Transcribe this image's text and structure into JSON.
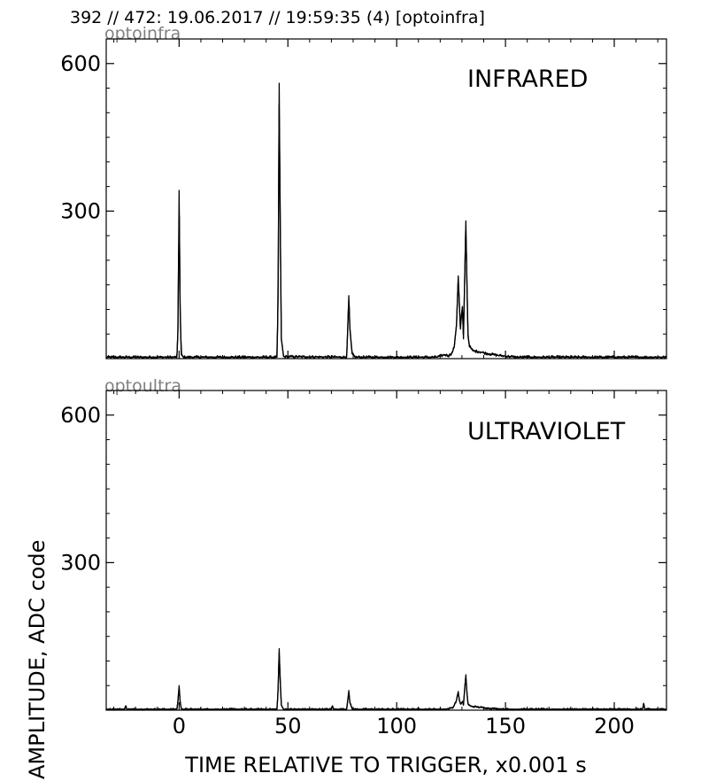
{
  "header": "392 // 472:   19.06.2017 // 19:59:35 (4)  [optoinfra]",
  "chart_data": {
    "type": "line",
    "xlabel": "TIME RELATIVE TO TRIGGER,   x0.001 s",
    "ylabel": "AMPLITUDE,  ADC code",
    "xlim": [
      -33.5,
      224
    ],
    "ylim": [
      0,
      650
    ],
    "x_ticks": [
      0,
      50,
      100,
      150,
      200
    ],
    "y_ticks": [
      300,
      600
    ],
    "line_color": "#000000",
    "grid": false,
    "panels": [
      {
        "tag": "optoinfra",
        "label": "INFRARED",
        "baseline": 3,
        "noise": 3,
        "points": [
          [
            -33.5,
            3
          ],
          [
            -1,
            3
          ],
          [
            -0.5,
            60
          ],
          [
            0,
            342
          ],
          [
            0.5,
            90
          ],
          [
            1,
            8
          ],
          [
            2,
            3
          ],
          [
            45,
            3
          ],
          [
            45.5,
            120
          ],
          [
            46,
            560
          ],
          [
            46.5,
            260
          ],
          [
            47,
            40
          ],
          [
            48,
            4
          ],
          [
            77,
            3
          ],
          [
            77.5,
            60
          ],
          [
            78,
            128
          ],
          [
            78.5,
            60
          ],
          [
            79.5,
            10
          ],
          [
            81,
            3
          ],
          [
            118,
            3
          ],
          [
            120,
            5
          ],
          [
            122,
            8
          ],
          [
            124,
            6
          ],
          [
            125.5,
            12
          ],
          [
            126.5,
            25
          ],
          [
            127.5,
            70
          ],
          [
            128.3,
            168
          ],
          [
            128.8,
            110
          ],
          [
            129.3,
            60
          ],
          [
            129.8,
            90
          ],
          [
            130.2,
            106
          ],
          [
            130.7,
            40
          ],
          [
            131.2,
            150
          ],
          [
            131.8,
            280
          ],
          [
            132.3,
            150
          ],
          [
            132.8,
            45
          ],
          [
            133.5,
            25
          ],
          [
            135,
            16
          ],
          [
            138,
            14
          ],
          [
            142,
            10
          ],
          [
            146,
            7
          ],
          [
            150,
            5
          ],
          [
            155,
            3
          ],
          [
            224,
            3
          ]
        ]
      },
      {
        "tag": "optoultra",
        "label": "ULTRAVIOLET",
        "baseline": 2,
        "noise": 2,
        "points": [
          [
            -33.5,
            2
          ],
          [
            -25,
            2
          ],
          [
            -24.5,
            9
          ],
          [
            -24,
            2
          ],
          [
            -1,
            2
          ],
          [
            -0.5,
            20
          ],
          [
            0,
            50
          ],
          [
            0.5,
            15
          ],
          [
            1,
            3
          ],
          [
            2,
            2
          ],
          [
            45,
            2
          ],
          [
            45.5,
            40
          ],
          [
            46,
            125
          ],
          [
            46.5,
            55
          ],
          [
            47,
            10
          ],
          [
            48,
            2
          ],
          [
            70,
            2
          ],
          [
            70.5,
            9
          ],
          [
            71,
            2
          ],
          [
            77,
            2
          ],
          [
            77.5,
            20
          ],
          [
            78,
            40
          ],
          [
            78.5,
            15
          ],
          [
            79.5,
            3
          ],
          [
            81,
            2
          ],
          [
            122,
            2
          ],
          [
            124,
            3
          ],
          [
            126,
            6
          ],
          [
            127.5,
            20
          ],
          [
            128.3,
            38
          ],
          [
            128.8,
            20
          ],
          [
            129.5,
            12
          ],
          [
            130.2,
            18
          ],
          [
            130.7,
            10
          ],
          [
            131.3,
            45
          ],
          [
            131.8,
            72
          ],
          [
            132.3,
            35
          ],
          [
            132.8,
            12
          ],
          [
            134,
            8
          ],
          [
            138,
            6
          ],
          [
            142,
            4
          ],
          [
            146,
            3
          ],
          [
            150,
            2
          ],
          [
            213,
            2
          ],
          [
            213.5,
            14
          ],
          [
            214,
            2
          ],
          [
            224,
            2
          ]
        ]
      }
    ]
  }
}
